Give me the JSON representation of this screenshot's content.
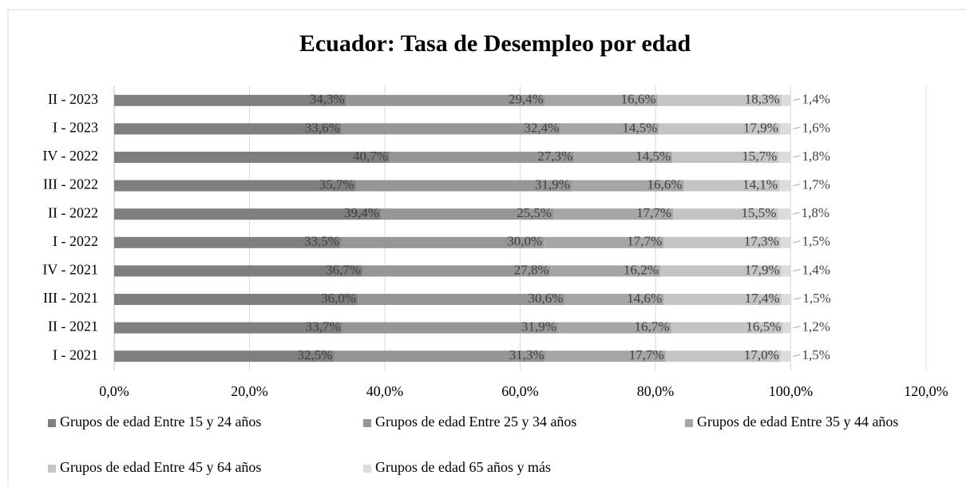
{
  "chart_data": {
    "type": "bar",
    "orientation": "horizontal",
    "stacked": true,
    "title": "Ecuador: Tasa de Desempleo por edad",
    "categories": [
      "II - 2023",
      "I - 2023",
      "IV - 2022",
      "III - 2022",
      "II - 2022",
      "I - 2022",
      "IV - 2021",
      "III - 2021",
      "II - 2021",
      "I - 2021"
    ],
    "series": [
      {
        "name": "Grupos de edad Entre 15 y 24 años",
        "color": "#7f7f7f",
        "values": [
          34.3,
          33.6,
          40.7,
          35.7,
          39.4,
          33.5,
          36.7,
          36.0,
          33.7,
          32.5
        ],
        "value_labels": [
          "34,3%",
          "33,6%",
          "40,7%",
          "35,7%",
          "39,4%",
          "33,5%",
          "36,7%",
          "36,0%",
          "33,7%",
          "32,5%"
        ]
      },
      {
        "name": "Grupos de edad Entre 25 y 34 años",
        "color": "#969696",
        "values": [
          29.4,
          32.4,
          27.3,
          31.9,
          25.5,
          30.0,
          27.8,
          30.6,
          31.9,
          31.3
        ],
        "value_labels": [
          "29,4%",
          "32,4%",
          "27,3%",
          "31,9%",
          "25,5%",
          "30,0%",
          "27,8%",
          "30,6%",
          "31,9%",
          "31,3%"
        ]
      },
      {
        "name": "Grupos de edad Entre 35 y 44 años",
        "color": "#a6a6a6",
        "values": [
          16.6,
          14.5,
          14.5,
          16.6,
          17.7,
          17.7,
          16.2,
          14.6,
          16.7,
          17.7
        ],
        "value_labels": [
          "16,6%",
          "14,5%",
          "14,5%",
          "16,6%",
          "17,7%",
          "17,7%",
          "16,2%",
          "14,6%",
          "16,7%",
          "17,7%"
        ]
      },
      {
        "name": "Grupos de edad Entre 45 y 64 años",
        "color": "#c4c4c4",
        "values": [
          18.3,
          17.9,
          15.7,
          14.1,
          15.5,
          17.3,
          17.9,
          17.4,
          16.5,
          17.0
        ],
        "value_labels": [
          "18,3%",
          "17,9%",
          "15,7%",
          "14,1%",
          "15,5%",
          "17,3%",
          "17,9%",
          "17,4%",
          "16,5%",
          "17,0%"
        ]
      },
      {
        "name": "Grupos de edad 65 años y más",
        "color": "#dcdcdc",
        "values": [
          1.4,
          1.6,
          1.8,
          1.7,
          1.8,
          1.5,
          1.4,
          1.5,
          1.2,
          1.5
        ],
        "value_labels": [
          "1,4%",
          "1,6%",
          "1,8%",
          "1,7%",
          "1,8%",
          "1,5%",
          "1,4%",
          "1,5%",
          "1,2%",
          "1,5%"
        ]
      }
    ],
    "xlim": [
      0,
      120
    ],
    "xticks": [
      {
        "value": 0,
        "label": "0,0%"
      },
      {
        "value": 20,
        "label": "20,0%"
      },
      {
        "value": 40,
        "label": "40,0%"
      },
      {
        "value": 60,
        "label": "60,0%"
      },
      {
        "value": 80,
        "label": "80,0%"
      },
      {
        "value": 100,
        "label": "100,0%"
      },
      {
        "value": 120,
        "label": "120,0%"
      }
    ],
    "grid": true,
    "legend": "bottom"
  }
}
